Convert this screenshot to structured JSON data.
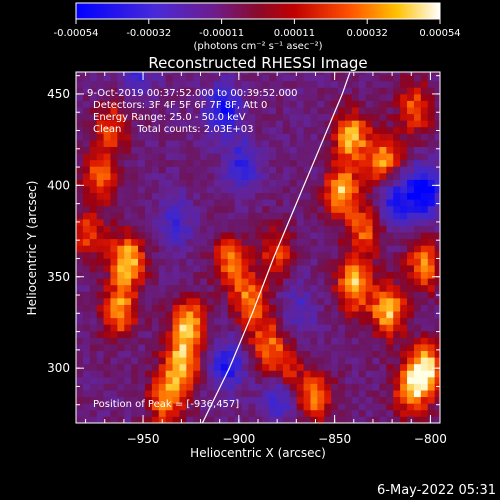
{
  "colorbar": {
    "ticks": [
      "-0.00054",
      "-0.00032",
      "-0.00011",
      "0.00011",
      "0.00032",
      "0.00054"
    ],
    "unit_label": "(photons cm⁻² s⁻¹ asec⁻²)",
    "colors": [
      "#0000ff",
      "#5a22b4",
      "#7a1060",
      "#a00000",
      "#ff3a00",
      "#ffa000",
      "#ffff80",
      "#ffffff"
    ]
  },
  "annotations": {
    "time_range": "9-Oct-2019 00:37:52.000 to 00:39:52.000",
    "detectors": "Detectors: 3F 4F 5F 6F 7F 8F, Att 0",
    "energy": "Energy Range: 25.0 - 50.0 keV",
    "clean": "Clean     Total counts: 2.03E+03",
    "peak": "Position of Peak = [-936,457]",
    "footer_date": "6-May-2022 05:31"
  },
  "chart_data": {
    "type": "heatmap",
    "title": "Reconstructed RHESSI Image",
    "xlabel": "Heliocentric X (arcsec)",
    "ylabel": "Heliocentric Y (arcsec)",
    "xlim": [
      -985,
      -795
    ],
    "ylim": [
      270,
      462
    ],
    "xticks": [
      -950,
      -900,
      -850,
      -800
    ],
    "yticks": [
      300,
      350,
      400,
      450
    ],
    "xtick_labels": [
      "−950",
      "−900",
      "−850",
      "−800"
    ],
    "ytick_labels": [
      "300",
      "350",
      "400",
      "450"
    ],
    "value_range": [
      -0.00054,
      0.00054
    ],
    "limb_curve": [
      [
        -919,
        270
      ],
      [
        -905,
        300
      ],
      [
        -893,
        330
      ],
      [
        -882,
        360
      ],
      [
        -870,
        390
      ],
      [
        -858,
        420
      ],
      [
        -846,
        450
      ],
      [
        -842,
        462
      ]
    ],
    "peak_position": [
      -936,
      457
    ],
    "bright_sources": [
      {
        "x": -960,
        "y": 357,
        "v": 0.00054
      },
      {
        "x": -964,
        "y": 330,
        "v": 0.00045
      },
      {
        "x": -928,
        "y": 322,
        "v": 0.0005
      },
      {
        "x": -932,
        "y": 300,
        "v": 0.0005
      },
      {
        "x": -940,
        "y": 281,
        "v": 0.00042
      },
      {
        "x": -906,
        "y": 357,
        "v": 0.0004
      },
      {
        "x": -896,
        "y": 336,
        "v": 0.0004
      },
      {
        "x": -887,
        "y": 312,
        "v": 0.00035
      },
      {
        "x": -882,
        "y": 362,
        "v": 0.0003
      },
      {
        "x": -842,
        "y": 344,
        "v": 0.0005
      },
      {
        "x": -824,
        "y": 330,
        "v": 0.0005
      },
      {
        "x": -804,
        "y": 298,
        "v": 0.00054
      },
      {
        "x": -812,
        "y": 287,
        "v": 0.00045
      },
      {
        "x": -843,
        "y": 425,
        "v": 0.0005
      },
      {
        "x": -848,
        "y": 395,
        "v": 0.0005
      },
      {
        "x": -826,
        "y": 412,
        "v": 0.00045
      },
      {
        "x": -968,
        "y": 430,
        "v": 0.00032
      },
      {
        "x": -974,
        "y": 403,
        "v": 0.00035
      },
      {
        "x": -980,
        "y": 372,
        "v": 0.0003
      },
      {
        "x": -878,
        "y": 295,
        "v": 0.00045
      },
      {
        "x": -862,
        "y": 282,
        "v": 0.0004
      },
      {
        "x": -805,
        "y": 355,
        "v": 0.0004
      },
      {
        "x": -836,
        "y": 373,
        "v": 0.00035
      },
      {
        "x": -810,
        "y": 440,
        "v": 0.00035
      }
    ],
    "dark_sources": [
      {
        "x": -910,
        "y": 440,
        "v": -0.0004
      },
      {
        "x": -900,
        "y": 410,
        "v": -0.0003
      },
      {
        "x": -880,
        "y": 286,
        "v": -0.00045
      },
      {
        "x": -908,
        "y": 300,
        "v": -0.00035
      },
      {
        "x": -805,
        "y": 395,
        "v": -0.0005
      },
      {
        "x": -820,
        "y": 390,
        "v": -0.0004
      },
      {
        "x": -935,
        "y": 380,
        "v": -0.00025
      },
      {
        "x": -955,
        "y": 460,
        "v": -0.00025
      },
      {
        "x": -870,
        "y": 330,
        "v": -0.0002
      }
    ]
  }
}
